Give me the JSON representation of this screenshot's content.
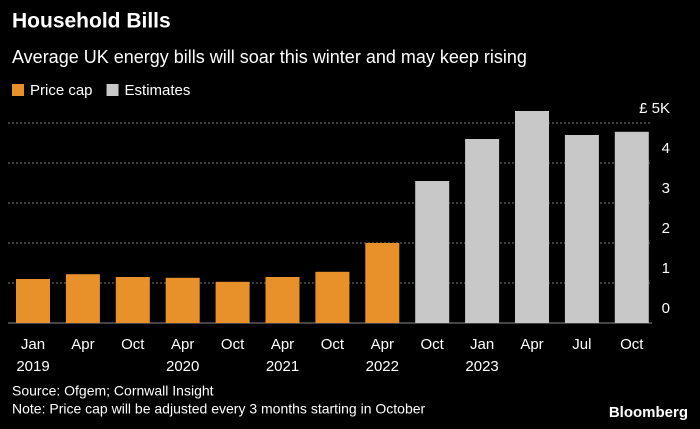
{
  "chart_data": {
    "type": "bar",
    "title": "Household Bills",
    "subtitle": "Average UK energy bills will soar this winter and may keep rising",
    "categories": [
      "Jan",
      "Apr",
      "Oct",
      "Apr",
      "Oct",
      "Apr",
      "Oct",
      "Apr",
      "Oct",
      "Jan",
      "Apr",
      "Jul",
      "Oct"
    ],
    "years": [
      "2019",
      null,
      null,
      "2020",
      null,
      "2021",
      null,
      "2022",
      null,
      "2023",
      null,
      null,
      null
    ],
    "series": [
      {
        "name": "Price cap",
        "color": "#e8912b",
        "values": [
          1.1,
          1.22,
          1.15,
          1.13,
          1.03,
          1.15,
          1.28,
          2.0,
          null,
          null,
          null,
          null,
          null
        ]
      },
      {
        "name": "Estimates",
        "color": "#c8c8c8",
        "values": [
          null,
          null,
          null,
          null,
          null,
          null,
          null,
          null,
          3.55,
          4.6,
          5.3,
          4.7,
          4.78
        ]
      }
    ],
    "ylim": [
      0,
      5.4
    ],
    "yticks": [
      0,
      1,
      2,
      3,
      4,
      {
        "value": 5,
        "label": "£ 5K"
      }
    ],
    "grid": true,
    "source": "Source: Ofgem; Cornwall Insight",
    "note": "Note: Price cap will be adjusted every 3 months starting in October",
    "brand": "Bloomberg"
  }
}
